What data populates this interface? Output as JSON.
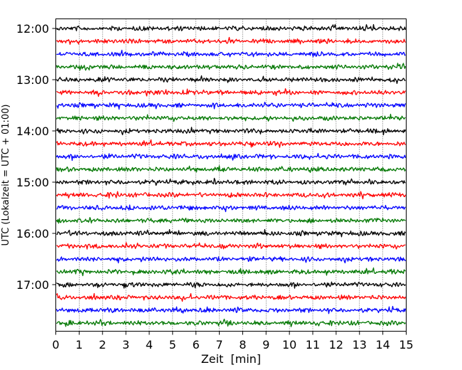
{
  "chart_data": {
    "type": "line",
    "xlabel": "Zeit  [min]",
    "ylabel": "UTC (Lokalzeit = UTC + 01:00)",
    "xlim": [
      0,
      15
    ],
    "x_ticks": [
      "0",
      "1",
      "2",
      "3",
      "4",
      "5",
      "6",
      "7",
      "8",
      "9",
      "10",
      "11",
      "12",
      "13",
      "14",
      "15"
    ],
    "y_ticks": [
      "12:00",
      "13:00",
      "14:00",
      "15:00",
      "16:00",
      "17:00"
    ],
    "grid": true,
    "trace_colors": [
      "#000000",
      "#ff0000",
      "#0000ff",
      "#007700"
    ],
    "traces": [
      {
        "start": "12:00"
      },
      {
        "start": "12:15"
      },
      {
        "start": "12:30"
      },
      {
        "start": "12:45"
      },
      {
        "start": "13:00"
      },
      {
        "start": "13:15"
      },
      {
        "start": "13:30"
      },
      {
        "start": "13:45"
      },
      {
        "start": "14:00"
      },
      {
        "start": "14:15"
      },
      {
        "start": "14:30"
      },
      {
        "start": "14:45"
      },
      {
        "start": "15:00"
      },
      {
        "start": "15:15"
      },
      {
        "start": "15:30"
      },
      {
        "start": "15:45"
      },
      {
        "start": "16:00"
      },
      {
        "start": "16:15"
      },
      {
        "start": "16:30"
      },
      {
        "start": "16:45"
      },
      {
        "start": "17:00"
      },
      {
        "start": "17:15"
      },
      {
        "start": "17:30"
      },
      {
        "start": "17:45"
      }
    ]
  }
}
